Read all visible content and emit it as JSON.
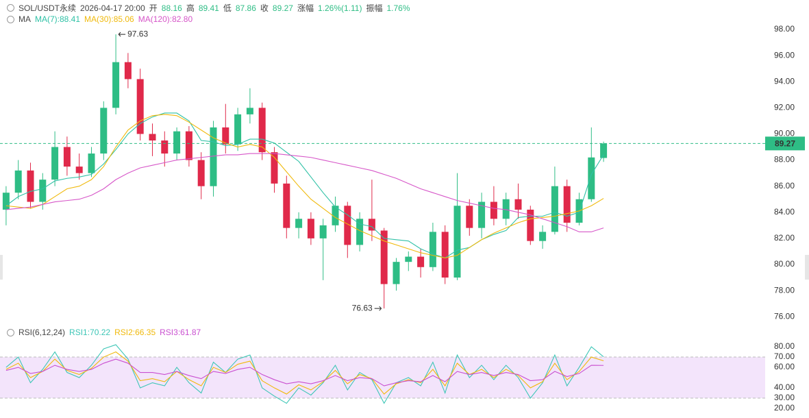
{
  "chart_data": [
    {
      "type": "candlestick",
      "title": "SOL/USDT永续",
      "subtitle": "2026-04-17 20:00",
      "info": [
        {
          "label": "开",
          "value": 88.16
        },
        {
          "label": "高",
          "value": 89.41
        },
        {
          "label": "低",
          "value": 87.86
        },
        {
          "label": "收",
          "value": 89.27
        },
        {
          "label": "涨幅",
          "value": "1.26%(1.11)"
        },
        {
          "label": "振幅",
          "value": "1.76%"
        }
      ],
      "indicator": "MA",
      "up_color": "#2ebd85",
      "down_color": "#e0294a",
      "open": [
        84.2,
        85.5,
        87.2,
        84.8,
        86.5,
        89.0,
        87.5,
        87.0,
        88.5,
        92.0,
        95.5,
        94.2,
        90.0,
        89.5,
        88.5,
        90.2,
        88.0,
        86.0,
        90.5,
        89.2,
        91.5,
        92.0,
        88.6,
        86.2,
        82.8,
        83.5,
        82.0,
        83.0,
        84.5,
        81.5,
        83.5,
        82.6,
        78.5,
        80.2,
        80.6,
        79.8,
        82.5,
        79.0,
        84.5,
        82.8,
        84.8,
        83.5,
        85.0,
        84.2,
        81.8,
        82.5,
        86.0,
        83.2,
        85.0,
        88.16
      ],
      "high": [
        86.0,
        88.0,
        87.8,
        87.0,
        90.2,
        89.8,
        88.5,
        89.0,
        92.5,
        97.63,
        96.2,
        95.0,
        90.8,
        90.2,
        90.5,
        90.6,
        88.6,
        91.0,
        92.3,
        92.0,
        93.5,
        92.4,
        89.0,
        86.8,
        84.0,
        84.0,
        83.5,
        85.2,
        84.8,
        84.0,
        86.5,
        82.8,
        80.5,
        81.0,
        81.2,
        83.2,
        83.0,
        87.0,
        85.0,
        85.5,
        86.0,
        85.5,
        86.2,
        84.5,
        83.0,
        87.5,
        86.5,
        85.5,
        90.5,
        89.41
      ],
      "low": [
        83.0,
        85.0,
        84.3,
        84.2,
        86.0,
        86.8,
        86.5,
        86.7,
        88.0,
        91.5,
        93.5,
        89.5,
        88.3,
        87.5,
        88.0,
        87.5,
        85.0,
        85.2,
        88.5,
        88.7,
        90.8,
        88.0,
        85.5,
        82.0,
        82.0,
        81.5,
        78.8,
        82.5,
        80.5,
        81.0,
        81.8,
        76.63,
        78.0,
        79.5,
        79.0,
        79.5,
        78.5,
        78.8,
        82.2,
        82.0,
        83.0,
        83.0,
        83.5,
        81.5,
        81.2,
        82.3,
        82.5,
        83.0,
        84.8,
        87.86
      ],
      "close": [
        85.5,
        87.2,
        84.8,
        86.5,
        89.0,
        87.5,
        87.0,
        88.5,
        92.0,
        95.5,
        94.2,
        90.0,
        89.5,
        88.5,
        90.2,
        88.0,
        86.0,
        90.5,
        89.2,
        91.5,
        92.0,
        88.6,
        86.2,
        82.8,
        83.5,
        82.0,
        83.0,
        84.5,
        81.5,
        83.5,
        82.6,
        78.5,
        80.2,
        80.6,
        79.8,
        82.5,
        79.0,
        84.5,
        82.8,
        84.8,
        83.5,
        85.0,
        84.2,
        81.8,
        82.5,
        86.0,
        83.2,
        85.0,
        88.2,
        89.27
      ],
      "series": [
        {
          "name": "MA(7):88.41",
          "color": "#2fc1a6",
          "values": [
            84.5,
            85.2,
            85.6,
            85.8,
            86.4,
            86.6,
            86.7,
            86.9,
            87.7,
            88.8,
            90.0,
            90.8,
            91.3,
            91.6,
            91.6,
            91.0,
            89.5,
            89.4,
            89.1,
            89.2,
            89.6,
            89.6,
            89.3,
            88.6,
            87.9,
            86.7,
            85.5,
            84.4,
            83.8,
            83.1,
            82.9,
            82.0,
            81.9,
            81.8,
            81.2,
            80.8,
            80.5,
            81.1,
            81.3,
            81.9,
            82.3,
            82.6,
            83.6,
            83.7,
            83.7,
            84.0,
            83.7,
            84.0,
            86.9,
            88.41
          ]
        },
        {
          "name": "MA(30):85.06",
          "color": "#f0b90b",
          "values": [
            84.5,
            84.4,
            84.3,
            84.6,
            85.2,
            85.8,
            86.0,
            86.5,
            87.5,
            89.0,
            90.3,
            91.0,
            91.4,
            91.5,
            91.4,
            90.9,
            90.3,
            89.7,
            89.3,
            89.0,
            89.2,
            89.0,
            88.2,
            87.1,
            86.0,
            85.0,
            84.3,
            83.6,
            83.1,
            82.6,
            82.2,
            81.8,
            81.5,
            81.2,
            80.9,
            80.7,
            80.5,
            80.7,
            81.3,
            81.9,
            82.4,
            82.8,
            83.2,
            83.5,
            83.6,
            83.7,
            83.9,
            84.1,
            84.5,
            85.06
          ]
        },
        {
          "name": "MA(120):82.80",
          "color": "#d655c8",
          "values": [
            84.2,
            84.3,
            84.4,
            84.6,
            84.8,
            84.9,
            85.0,
            85.3,
            85.8,
            86.5,
            87.0,
            87.4,
            87.6,
            87.8,
            88.0,
            88.1,
            88.2,
            88.3,
            88.4,
            88.4,
            88.5,
            88.5,
            88.5,
            88.4,
            88.3,
            88.2,
            88.0,
            87.8,
            87.6,
            87.4,
            87.2,
            86.9,
            86.6,
            86.2,
            85.8,
            85.5,
            85.2,
            84.9,
            84.7,
            84.5,
            84.3,
            84.2,
            84.0,
            83.8,
            83.5,
            83.2,
            82.9,
            82.5,
            82.5,
            82.8
          ]
        }
      ],
      "ylim": [
        75.59,
        100.26
      ],
      "yticks": [
        {
          "value": 76,
          "label": "76.00"
        },
        {
          "value": 78,
          "label": "78.00"
        },
        {
          "value": 80,
          "label": "80.00"
        },
        {
          "value": 82,
          "label": "82.00"
        },
        {
          "value": 84,
          "label": "84.00"
        },
        {
          "value": 86,
          "label": "86.00"
        },
        {
          "value": 88,
          "label": "88.00"
        },
        {
          "value": 90,
          "label": "90.00"
        },
        {
          "value": 92,
          "label": "92.00"
        },
        {
          "value": 94,
          "label": "94.00"
        },
        {
          "value": 96,
          "label": "96.00"
        },
        {
          "value": 98,
          "label": "98.00"
        }
      ],
      "grid": false
    },
    {
      "type": "line",
      "title": "RSI(6,12,24)",
      "series": [
        {
          "name": "RSI1:70.22",
          "color": "#3cc6b6",
          "values": [
            60,
            70,
            45,
            58,
            75,
            55,
            50,
            62,
            78,
            82,
            68,
            40,
            45,
            42,
            60,
            45,
            35,
            65,
            55,
            68,
            72,
            40,
            32,
            25,
            40,
            33,
            45,
            62,
            38,
            55,
            48,
            25,
            45,
            50,
            42,
            65,
            35,
            72,
            50,
            62,
            48,
            62,
            50,
            30,
            45,
            72,
            42,
            60,
            80,
            70.22
          ]
        },
        {
          "name": "RSI2:66.35",
          "color": "#f0b90b",
          "values": [
            58,
            64,
            50,
            56,
            68,
            57,
            53,
            59,
            70,
            75,
            66,
            47,
            49,
            46,
            56,
            48,
            42,
            60,
            55,
            63,
            66,
            47,
            40,
            34,
            43,
            38,
            46,
            57,
            44,
            53,
            49,
            34,
            44,
            48,
            45,
            58,
            42,
            64,
            53,
            58,
            50,
            58,
            52,
            40,
            46,
            64,
            48,
            56,
            70,
            66.35
          ]
        },
        {
          "name": "RSI3:61.87",
          "color": "#c94fd0",
          "values": [
            57,
            60,
            54,
            56,
            62,
            58,
            56,
            58,
            64,
            68,
            64,
            55,
            55,
            53,
            56,
            52,
            49,
            56,
            54,
            58,
            60,
            53,
            48,
            44,
            46,
            44,
            47,
            52,
            47,
            50,
            49,
            42,
            45,
            47,
            46,
            52,
            46,
            56,
            53,
            55,
            52,
            55,
            53,
            47,
            48,
            56,
            51,
            54,
            62,
            61.87
          ]
        }
      ],
      "band": [
        30,
        70
      ],
      "band_color": "#f3e4fb",
      "ylim": [
        10.7,
        90.7
      ],
      "yticks": [
        {
          "value": 20,
          "label": "20.00"
        },
        {
          "value": 30,
          "label": "30.00"
        },
        {
          "value": 40,
          "label": "40.00"
        },
        {
          "value": 60,
          "label": "60.00"
        },
        {
          "value": 70,
          "label": "70.00"
        },
        {
          "value": 80,
          "label": "80.00"
        }
      ],
      "grid": false
    }
  ]
}
